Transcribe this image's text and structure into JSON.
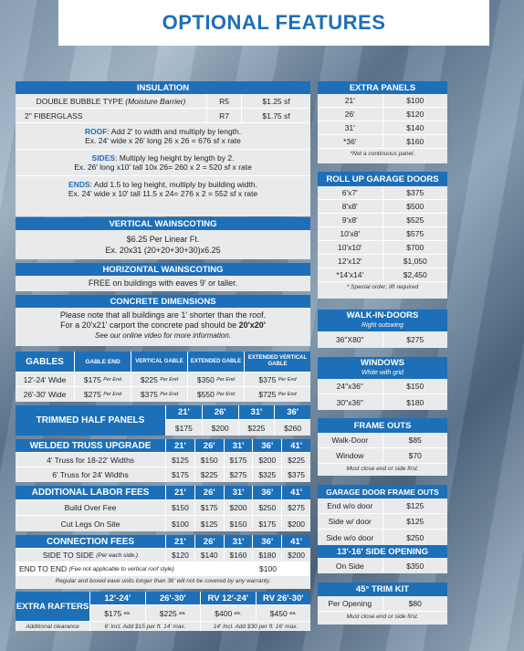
{
  "title": "OPTIONAL FEATURES",
  "insulation": {
    "header": "INSULATION",
    "rows": [
      {
        "name": "DOUBLE BUBBLE TYPE",
        "note": "(Moisture Barrier)",
        "r": "R5",
        "price": "$1.25 sf"
      },
      {
        "name": "2\" FIBERGLASS",
        "note": "",
        "r": "R7",
        "price": "$1.75 sf"
      }
    ],
    "roof_label": "ROOF",
    "roof_text": ": Add 2' to width and multiply by length.",
    "roof_ex": "Ex. 24' wide x 26' long   26 x 26 = 676 sf x rate",
    "sides_label": "SIDES",
    "sides_text": ": Multiply leg height by length by 2.",
    "sides_ex": "Ex. 26' long x10' tall   10x 26= 260 x 2 = 520 sf x rate",
    "ends_label": "ENDS",
    "ends_text": ": Add 1.5 to leg height, multiply by building width.",
    "ends_ex": "Ex. 24' wide x 10' tall   11.5 x 24= 276 x 2 = 552 sf x rate"
  },
  "vertical": {
    "header": "VERTICAL WAINSCOTING",
    "line1": "$6.25 Per Linear Ft.",
    "line2": "Ex. 20x31 (20+20+30+30)x6.25"
  },
  "horizontal": {
    "header": "HORIZONTAL WAINSCOTING",
    "line1": "FREE on buildings with eaves 9' or taller."
  },
  "concrete": {
    "header": "CONCRETE DIMENSIONS",
    "line1": "Please note that all buildings are 1' shorter than the roof.",
    "line2a": "For a 20'x21' carport the concrete pad should be ",
    "line2b": "20'x20'",
    "line3": "See our online video for more information."
  },
  "gables": {
    "header": "GABLES",
    "cols": [
      "GABLE END",
      "VERTICAL GABLE",
      "EXTENDED GABLE",
      "EXTENDED VERTICAL GABLE"
    ],
    "per": "Per End",
    "rows": [
      {
        "label": "12'-24' Wide",
        "vals": [
          "$175",
          "$225",
          "$350",
          "$375"
        ]
      },
      {
        "label": "26'-30' Wide",
        "vals": [
          "$275",
          "$375",
          "$550",
          "$725"
        ]
      }
    ]
  },
  "trimmed": {
    "header": "TRIMMED HALF PANELS",
    "cols": [
      "21'",
      "26'",
      "31'",
      "36'"
    ],
    "vals": [
      "$175",
      "$200",
      "$225",
      "$260"
    ]
  },
  "welded": {
    "header": "WELDED TRUSS UPGRADE",
    "cols": [
      "21'",
      "26'",
      "31'",
      "36'",
      "41'"
    ],
    "rows": [
      {
        "label": "4' Truss for 18-22' Widths",
        "vals": [
          "$125",
          "$150",
          "$175",
          "$200",
          "$225"
        ]
      },
      {
        "label": "6' Truss for 24' Widths",
        "vals": [
          "$175",
          "$225",
          "$275",
          "$325",
          "$375"
        ]
      }
    ]
  },
  "labor": {
    "header": "ADDITIONAL LABOR FEES",
    "cols": [
      "21'",
      "26'",
      "31'",
      "36'",
      "41'"
    ],
    "rows": [
      {
        "label": "Build Over Fee",
        "vals": [
          "$150",
          "$175",
          "$200",
          "$250",
          "$275"
        ]
      },
      {
        "label": "Cut Legs On Site",
        "vals": [
          "$100",
          "$125",
          "$150",
          "$175",
          "$200"
        ]
      }
    ]
  },
  "connection": {
    "header": "CONNECTION FEES",
    "cols": [
      "21'",
      "26'",
      "31'",
      "36'",
      "41'"
    ],
    "side_label": "SIDE TO SIDE",
    "side_note": "(Per each side.)",
    "side_vals": [
      "$120",
      "$140",
      "$160",
      "$180",
      "$200"
    ],
    "end_label": "END TO END",
    "end_note": "(Fee not applicable to vertical roof style)",
    "end_val": "$100",
    "note": "Regular and boxed eave units longer than 36' will not be covered by any warranty."
  },
  "rafters": {
    "header": "EXTRA RAFTERS",
    "cols": [
      "12'-24'",
      "26'-30'",
      "RV 12'-24'",
      "RV 26'-30'"
    ],
    "vals": [
      "$175",
      "$225",
      "$400",
      "$450"
    ],
    "unit": "ea.",
    "footer": [
      "Additional clearance",
      "6' Incl. Add $15 per ft. 14' max.",
      "14' Incl. Add $30 per ft. 16' max."
    ]
  },
  "extra_panels": {
    "header": "EXTRA PANELS",
    "rows": [
      [
        "21'",
        "$100"
      ],
      [
        "26'",
        "$120"
      ],
      [
        "31'",
        "$140"
      ],
      [
        "*36'",
        "$160"
      ]
    ],
    "note": "*Not a continuous panel."
  },
  "garage": {
    "header": "ROLL UP GARAGE DOORS",
    "rows": [
      [
        "6'x7'",
        "$375"
      ],
      [
        "8'x8'",
        "$500"
      ],
      [
        "9'x8'",
        "$525"
      ],
      [
        "10'x8'",
        "$575"
      ],
      [
        "10'x10'",
        "$700"
      ],
      [
        "12'x12'",
        "$1,050"
      ],
      [
        "*14'x14'",
        "$2,450"
      ]
    ],
    "note": "* Special order; lift required"
  },
  "walkin": {
    "header": "WALK-IN-DOORS",
    "sub": "Right outswing",
    "rows": [
      [
        "36\"X80\"",
        "$275"
      ]
    ]
  },
  "windows": {
    "header": "WINDOWS",
    "sub": "White with grid",
    "rows": [
      [
        "24\"x36\"",
        "$150"
      ],
      [
        "30\"x36\"",
        "$180"
      ]
    ]
  },
  "frame_outs": {
    "header": "FRAME OUTS",
    "rows": [
      [
        "Walk-Door",
        "$85"
      ],
      [
        "Window",
        "$70"
      ]
    ],
    "note": "Must close end or side first."
  },
  "gdfo": {
    "header": "GARAGE DOOR FRAME OUTS",
    "rows": [
      [
        "End w/o door",
        "$125"
      ],
      [
        "Side w/ door",
        "$125"
      ],
      [
        "Side w/o door",
        "$250"
      ]
    ]
  },
  "side_opening": {
    "header": "13'-16' SIDE OPENING",
    "rows": [
      [
        "On Side",
        "$350"
      ]
    ]
  },
  "trim_kit": {
    "header": "45° TRIM KIT",
    "rows": [
      [
        "Per Opening",
        "$80"
      ]
    ],
    "note": "Must close end or side first."
  }
}
